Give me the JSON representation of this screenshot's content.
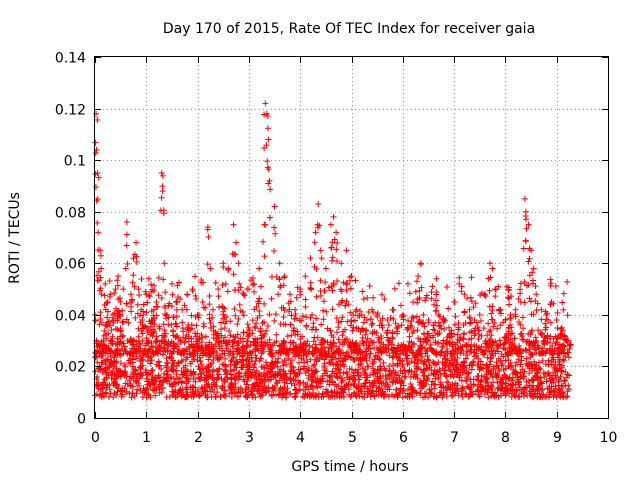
{
  "chart_data": {
    "type": "scatter",
    "title": "Day 170 of 2015, Rate Of TEC Index for receiver gaia",
    "xlabel": "GPS time / hours",
    "ylabel": "ROTI / TECUs",
    "xlim": [
      0,
      10
    ],
    "ylim": [
      0,
      0.14
    ],
    "xticks": [
      "0",
      "1",
      "2",
      "3",
      "4",
      "5",
      "6",
      "7",
      "8",
      "9",
      "10"
    ],
    "yticks": [
      "0",
      "0.02",
      "0.04",
      "0.06",
      "0.08",
      "0.1",
      "0.12",
      "0.14"
    ],
    "grid": true,
    "marker": "+",
    "color": "#ff0000",
    "series": [
      {
        "name": "ROTI",
        "x": [
          0.02,
          0.03,
          0.05,
          0.06,
          0.1,
          0.12,
          0.2,
          0.25,
          0.3,
          0.35,
          0.4,
          0.45,
          0.5,
          0.55,
          0.6,
          0.62,
          0.7,
          0.75,
          0.8,
          0.85,
          0.9,
          0.95,
          1.0,
          1.05,
          1.1,
          1.15,
          1.2,
          1.3,
          1.32,
          1.35,
          1.4,
          1.5,
          1.6,
          1.7,
          1.8,
          1.9,
          2.0,
          2.1,
          2.2,
          2.25,
          2.3,
          2.4,
          2.5,
          2.55,
          2.6,
          2.7,
          2.75,
          2.8,
          2.9,
          3.0,
          3.1,
          3.2,
          3.3,
          3.32,
          3.35,
          3.38,
          3.4,
          3.5,
          3.6,
          3.7,
          3.8,
          3.9,
          4.0,
          4.1,
          4.2,
          4.3,
          4.35,
          4.4,
          4.5,
          4.6,
          4.65,
          4.7,
          4.8,
          4.9,
          5.0,
          5.1,
          5.2,
          5.3,
          5.4,
          5.5,
          5.6,
          5.7,
          5.8,
          5.9,
          6.0,
          6.1,
          6.2,
          6.3,
          6.35,
          6.4,
          6.5,
          6.6,
          6.7,
          6.8,
          6.9,
          7.0,
          7.1,
          7.2,
          7.3,
          7.4,
          7.5,
          7.6,
          7.7,
          7.75,
          7.8,
          7.9,
          8.0,
          8.1,
          8.2,
          8.3,
          8.38,
          8.4,
          8.45,
          8.5,
          8.55,
          8.6,
          8.7,
          8.8,
          8.9,
          9.0,
          9.1,
          9.15,
          9.2,
          9.25
        ],
        "y": [
          0.118,
          0.104,
          0.095,
          0.072,
          0.065,
          0.058,
          0.052,
          0.045,
          0.048,
          0.04,
          0.05,
          0.055,
          0.045,
          0.05,
          0.058,
          0.076,
          0.048,
          0.062,
          0.068,
          0.05,
          0.042,
          0.044,
          0.048,
          0.054,
          0.038,
          0.042,
          0.045,
          0.095,
          0.088,
          0.06,
          0.04,
          0.052,
          0.045,
          0.042,
          0.048,
          0.05,
          0.04,
          0.045,
          0.074,
          0.058,
          0.042,
          0.05,
          0.06,
          0.052,
          0.058,
          0.075,
          0.068,
          0.06,
          0.048,
          0.05,
          0.052,
          0.058,
          0.075,
          0.122,
          0.118,
          0.108,
          0.092,
          0.082,
          0.06,
          0.055,
          0.048,
          0.042,
          0.05,
          0.055,
          0.062,
          0.072,
          0.083,
          0.065,
          0.058,
          0.075,
          0.078,
          0.072,
          0.06,
          0.065,
          0.055,
          0.042,
          0.04,
          0.038,
          0.042,
          0.04,
          0.036,
          0.038,
          0.042,
          0.035,
          0.04,
          0.052,
          0.045,
          0.055,
          0.06,
          0.04,
          0.038,
          0.036,
          0.04,
          0.038,
          0.035,
          0.045,
          0.052,
          0.048,
          0.042,
          0.038,
          0.04,
          0.048,
          0.06,
          0.058,
          0.05,
          0.042,
          0.038,
          0.04,
          0.042,
          0.045,
          0.085,
          0.08,
          0.075,
          0.065,
          0.058,
          0.048,
          0.042,
          0.04,
          0.045,
          0.038,
          0.035,
          0.032,
          0.03,
          0.028
        ],
        "band": {
          "description_values": "dense base band",
          "y_low": 0.008,
          "y_high": 0.03
        }
      }
    ]
  }
}
